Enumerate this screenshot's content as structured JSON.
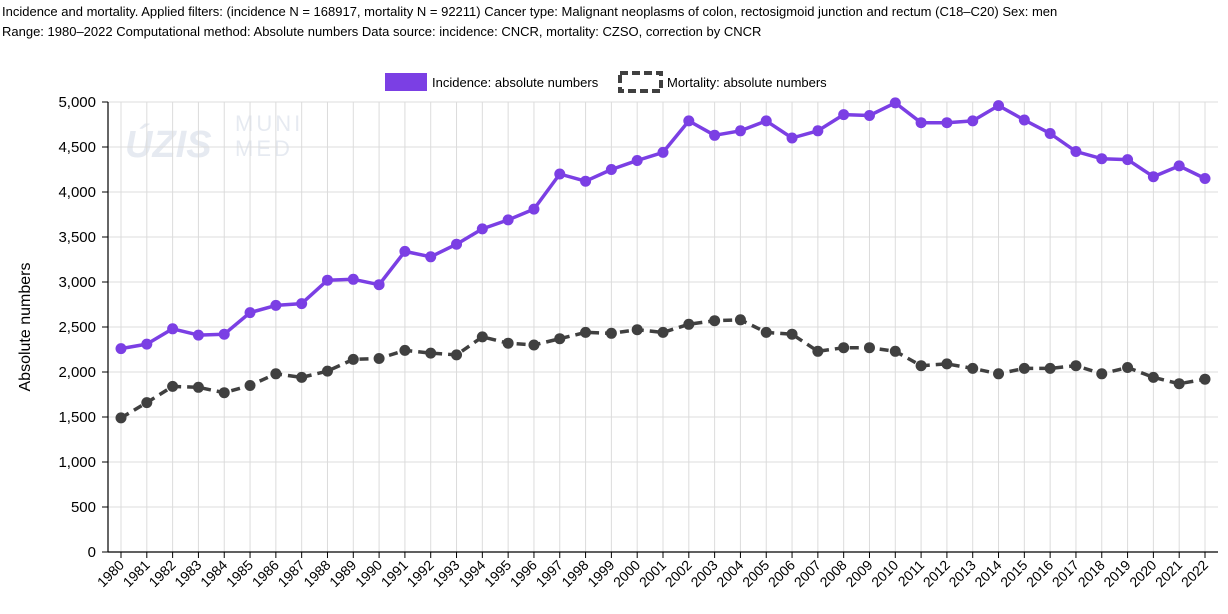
{
  "header": {
    "line1": "Incidence and mortality. Applied filters: (incidence N = 168917, mortality N = 92211) Cancer type: Malignant neoplasms of colon, rectosigmoid junction and rectum (C18–C20) Sex: men",
    "line2": "Range: 1980–2022 Computational method: Absolute numbers Data source: incidence: CNCR, mortality: CZSO, correction by CNCR"
  },
  "watermark": {
    "left": "ÚZIS",
    "right_top": "MUNI",
    "right_bottom": "MED"
  },
  "chart_data": {
    "type": "line",
    "categories": [
      "1980",
      "1981",
      "1982",
      "1983",
      "1984",
      "1985",
      "1986",
      "1987",
      "1988",
      "1989",
      "1990",
      "1991",
      "1992",
      "1993",
      "1994",
      "1995",
      "1996",
      "1997",
      "1998",
      "1999",
      "2000",
      "2001",
      "2002",
      "2003",
      "2004",
      "2005",
      "2006",
      "2007",
      "2008",
      "2009",
      "2010",
      "2011",
      "2012",
      "2013",
      "2014",
      "2015",
      "2016",
      "2017",
      "2018",
      "2019",
      "2020",
      "2021",
      "2022"
    ],
    "ylabel": "Absolute numbers",
    "xlabel": "",
    "ylim": [
      0,
      5000
    ],
    "yticks": [
      0,
      500,
      1000,
      1500,
      2000,
      2500,
      3000,
      3500,
      4000,
      4500,
      5000
    ],
    "ytick_labels": [
      "0",
      "500",
      "1,000",
      "1,500",
      "2,000",
      "2,500",
      "3,000",
      "3,500",
      "4,000",
      "4,500",
      "5,000"
    ],
    "grid": true,
    "legend_position": "top-center",
    "series": [
      {
        "name": "Incidence: absolute numbers",
        "color": "#7b3fe4",
        "style": "solid",
        "values": [
          2260,
          2310,
          2480,
          2410,
          2420,
          2660,
          2740,
          2760,
          3020,
          3030,
          2970,
          3340,
          3280,
          3420,
          3590,
          3690,
          3810,
          4200,
          4120,
          4250,
          4350,
          4440,
          4790,
          4630,
          4680,
          4790,
          4600,
          4680,
          4860,
          4850,
          4990,
          4770,
          4770,
          4790,
          4960,
          4800,
          4650,
          4450,
          4370,
          4360,
          4170,
          4290,
          4150
        ]
      },
      {
        "name": "Mortality: absolute numbers",
        "color": "#404040",
        "style": "dashed",
        "values": [
          1490,
          1660,
          1840,
          1830,
          1770,
          1850,
          1980,
          1940,
          2010,
          2140,
          2150,
          2240,
          2210,
          2190,
          2390,
          2320,
          2300,
          2370,
          2440,
          2430,
          2470,
          2440,
          2530,
          2570,
          2580,
          2440,
          2420,
          2230,
          2270,
          2270,
          2230,
          2070,
          2090,
          2040,
          1980,
          2040,
          2040,
          2070,
          1980,
          2050,
          1940,
          1870,
          1920
        ]
      }
    ]
  }
}
